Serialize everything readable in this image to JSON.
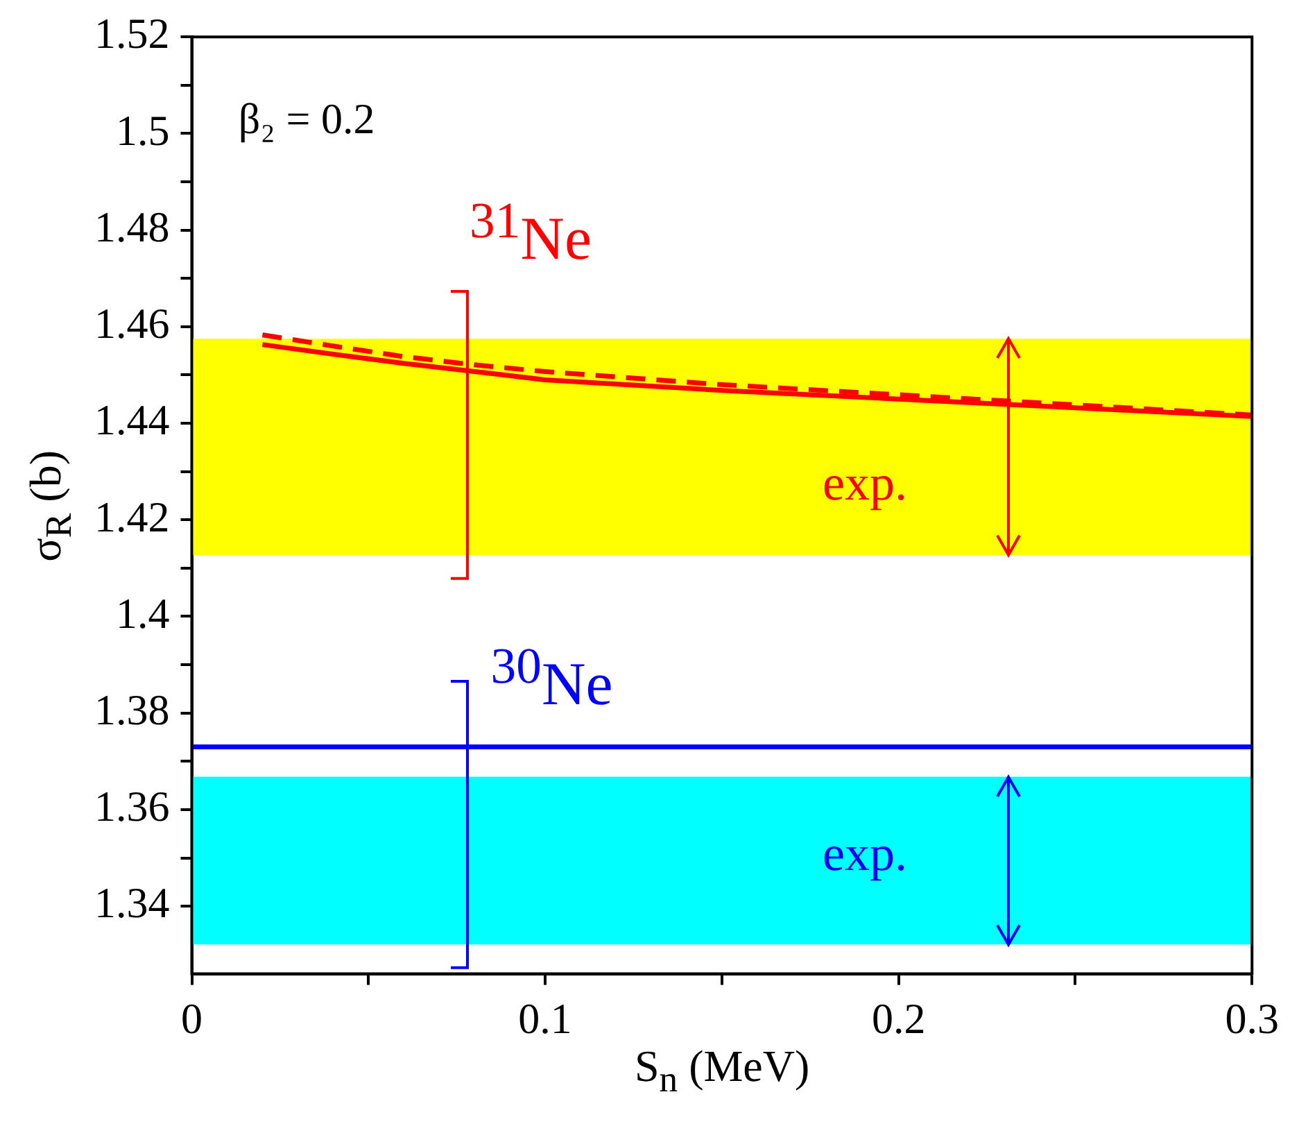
{
  "chart_data": {
    "type": "line",
    "xlabel": "S$_{n}$  (MeV)",
    "ylabel": "σ$_{R}$ (b)",
    "xlim": [
      0,
      0.3
    ],
    "xticks": [
      0,
      {
        "value": 0.05,
        "label": null
      },
      0.1,
      {
        "value": 0.15,
        "label": null
      },
      0.2,
      {
        "value": 0.25,
        "label": null
      },
      0.3
    ],
    "ylim": [
      1.326,
      1.52
    ],
    "yticks": [
      1.34,
      {
        "value": 1.35,
        "label": null
      },
      1.36,
      {
        "value": 1.37,
        "label": null
      },
      1.38,
      {
        "value": 1.39,
        "label": null
      },
      {
        "value": 1.4,
        "label": "1.4"
      },
      {
        "value": 1.41,
        "label": null
      },
      1.42,
      {
        "value": 1.43,
        "label": null
      },
      1.44,
      {
        "value": 1.45,
        "label": null
      },
      1.46,
      {
        "value": 1.47,
        "label": null
      },
      1.48,
      {
        "value": 1.49,
        "label": null
      },
      {
        "value": 1.5,
        "label": "1.5"
      },
      {
        "value": 1.51,
        "label": null
      },
      1.52
    ],
    "grid": false,
    "legend": false,
    "marker": "none",
    "series": [
      {
        "color": "#ff0000",
        "line_style": "solid",
        "x": [
          0.02,
          0.04,
          0.06,
          0.08,
          0.1,
          0.15,
          0.2,
          0.25,
          0.3
        ],
        "values": [
          1.4563,
          1.4543,
          1.4524,
          1.4507,
          1.449,
          1.4468,
          1.445,
          1.4432,
          1.4414
        ]
      },
      {
        "color": "#ff0000",
        "line_style": "dashed",
        "x": [
          0.02,
          0.04,
          0.06,
          0.08,
          0.1,
          0.15,
          0.2,
          0.25,
          0.3
        ],
        "values": [
          1.4583,
          1.456,
          1.4538,
          1.4521,
          1.4507,
          1.448,
          1.4459,
          1.4438,
          1.4417
        ]
      },
      {
        "color": "#0000ff",
        "line_style": "solid",
        "x": [
          0,
          0.3
        ],
        "values": [
          1.373,
          1.373
        ]
      }
    ],
    "bands": [
      {
        "axis": "y",
        "from": 1.4127,
        "to": 1.4575,
        "color": "#ffff00"
      },
      {
        "axis": "y",
        "from": 1.3321,
        "to": 1.3668,
        "color": "#00ffff"
      }
    ],
    "annotations": [
      "β₂ = 0.2",
      "$^{31}$Ne",
      "$^{30}$Ne",
      "exp.",
      "exp."
    ]
  }
}
